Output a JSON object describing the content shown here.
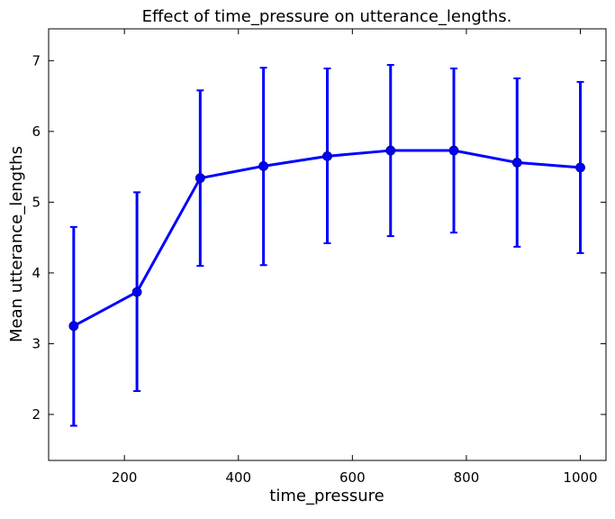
{
  "chart_data": {
    "type": "line",
    "title": "Effect of time_pressure on utterance_lengths.",
    "xlabel": "time_pressure",
    "ylabel": "Mean utterance_lengths",
    "xlim": [
      67,
      1045
    ],
    "ylim": [
      1.35,
      7.45
    ],
    "x_ticks": [
      200,
      400,
      600,
      800,
      1000
    ],
    "y_ticks": [
      2,
      3,
      4,
      5,
      6,
      7
    ],
    "grid": false,
    "color": "#0000ff",
    "series": [
      {
        "x": [
          111,
          222,
          333,
          444,
          556,
          667,
          778,
          889,
          1000
        ],
        "values": [
          3.25,
          3.73,
          5.34,
          5.51,
          5.65,
          5.73,
          5.73,
          5.56,
          5.49
        ],
        "error_low": [
          1.84,
          2.33,
          4.1,
          4.11,
          4.42,
          4.52,
          4.57,
          4.37,
          4.28
        ],
        "error_high": [
          4.65,
          5.14,
          6.58,
          6.9,
          6.89,
          6.94,
          6.89,
          6.75,
          6.7
        ]
      }
    ]
  }
}
